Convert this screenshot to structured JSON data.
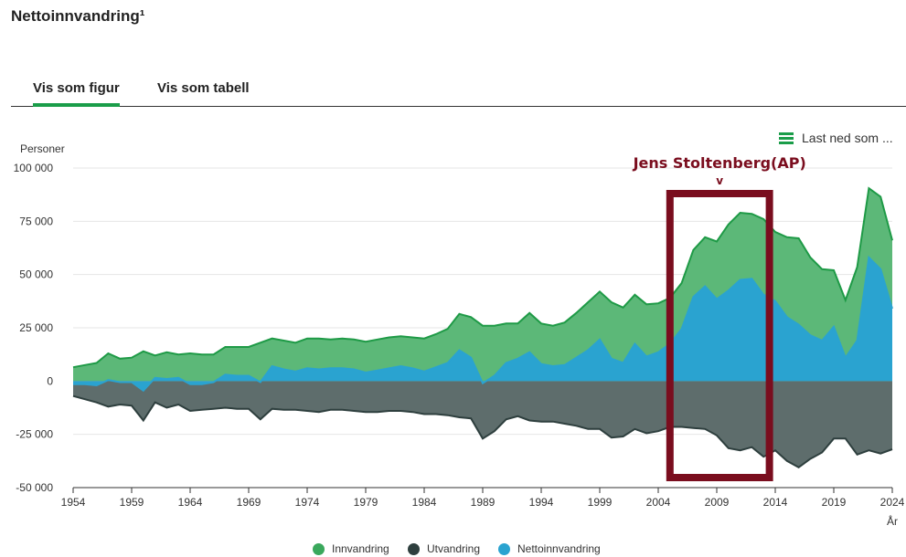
{
  "page": {
    "title": "Nettoinnvandring¹",
    "tabs": [
      {
        "label": "Vis som figur",
        "active": true
      },
      {
        "label": "Vis som tabell",
        "active": false
      }
    ],
    "download_label": "Last ned som ...",
    "download_icon": "hamburger-menu-icon",
    "accent_color": "#1a9d49"
  },
  "annotation": {
    "label": "Jens Stoltenberg(AP)",
    "arrow": "v",
    "color": "#7a0d1e",
    "x_range": [
      2005,
      2013.5
    ]
  },
  "chart_data": {
    "type": "area",
    "ylabel": "Personer",
    "xlabel": "År",
    "ylim": [
      -50000,
      100000
    ],
    "xlim": [
      1954,
      2024
    ],
    "y_ticks": [
      100000,
      75000,
      50000,
      25000,
      0,
      -25000,
      -50000
    ],
    "y_tick_labels": [
      "100 000",
      "75 000",
      "50 000",
      "25 000",
      "0",
      "-25 000",
      "-50 000"
    ],
    "x_ticks": [
      1954,
      1959,
      1964,
      1969,
      1974,
      1979,
      1984,
      1989,
      1994,
      1999,
      2004,
      2009,
      2014,
      2019,
      2024
    ],
    "x_tick_labels": [
      "1954",
      "1959",
      "1964",
      "1969",
      "1974",
      "1979",
      "1984",
      "1989",
      "1994",
      "1999",
      "2004",
      "2009",
      "2014",
      "2019",
      "2024"
    ],
    "grid": true,
    "legend_position": "bottom-center",
    "x": [
      1954,
      1955,
      1956,
      1957,
      1958,
      1959,
      1960,
      1961,
      1962,
      1963,
      1964,
      1965,
      1966,
      1967,
      1968,
      1969,
      1970,
      1971,
      1972,
      1973,
      1974,
      1975,
      1976,
      1977,
      1978,
      1979,
      1980,
      1981,
      1982,
      1983,
      1984,
      1985,
      1986,
      1987,
      1988,
      1989,
      1990,
      1991,
      1992,
      1993,
      1994,
      1995,
      1996,
      1997,
      1998,
      1999,
      2000,
      2001,
      2002,
      2003,
      2004,
      2005,
      2006,
      2007,
      2008,
      2009,
      2010,
      2011,
      2012,
      2013,
      2014,
      2015,
      2016,
      2017,
      2018,
      2019,
      2020,
      2021,
      2022,
      2023,
      2024
    ],
    "series": [
      {
        "name": "Innvandring",
        "color": "#3aa85c",
        "values": [
          6500,
          7500,
          8500,
          13000,
          10500,
          11000,
          14000,
          12000,
          13500,
          12500,
          13000,
          12500,
          12500,
          16000,
          16000,
          16000,
          18000,
          20000,
          19000,
          18000,
          20000,
          20000,
          19500,
          20000,
          19500,
          18500,
          19500,
          20500,
          21000,
          20500,
          20000,
          22000,
          24500,
          31500,
          30000,
          26000,
          26000,
          27000,
          27000,
          32000,
          27000,
          26000,
          27500,
          32000,
          37000,
          42000,
          37000,
          34500,
          40500,
          36000,
          36500,
          39000,
          46000,
          61500,
          67500,
          65500,
          73500,
          79000,
          78500,
          76000,
          70000,
          67500,
          67000,
          58000,
          52500,
          52000,
          38000,
          53500,
          90500,
          86500,
          66000
        ]
      },
      {
        "name": "Utvandring",
        "color": "#2e3f3e",
        "values": [
          -7000,
          -8500,
          -10000,
          -12000,
          -11000,
          -11500,
          -18500,
          -10000,
          -12500,
          -11000,
          -14000,
          -13500,
          -13000,
          -12500,
          -13000,
          -13000,
          -18000,
          -13000,
          -13500,
          -13500,
          -14000,
          -14500,
          -13500,
          -13500,
          -14000,
          -14500,
          -14500,
          -14000,
          -14000,
          -14500,
          -15500,
          -15500,
          -16000,
          -17000,
          -17500,
          -27000,
          -23500,
          -18000,
          -16500,
          -18500,
          -19000,
          -19000,
          -20000,
          -21000,
          -22500,
          -22500,
          -26500,
          -26000,
          -22500,
          -24500,
          -23500,
          -21500,
          -21500,
          -22000,
          -22500,
          -25500,
          -31500,
          -32500,
          -31000,
          -35500,
          -32500,
          -37500,
          -40500,
          -36500,
          -33500,
          -27000,
          -27000,
          -34500,
          -32500,
          -34000,
          -32000
        ]
      },
      {
        "name": "Nettoinnvandring",
        "color": "#2aa3d0",
        "values": [
          -1500,
          -1500,
          -2000,
          500,
          -500,
          -500,
          -4500,
          1500,
          1000,
          1500,
          -1500,
          -1500,
          -500,
          3000,
          2500,
          2500,
          -500,
          7000,
          5500,
          4500,
          6000,
          5500,
          6000,
          6000,
          5500,
          4000,
          5000,
          6000,
          7000,
          6000,
          4500,
          6500,
          8500,
          14500,
          11000,
          -1000,
          2500,
          8500,
          10500,
          13500,
          8000,
          7000,
          7500,
          11000,
          14500,
          19500,
          10500,
          8500,
          17500,
          11500,
          13500,
          17500,
          24500,
          39500,
          44500,
          38500,
          42500,
          47500,
          48000,
          40500,
          37500,
          30000,
          26500,
          21500,
          19000,
          25500,
          11000,
          19000,
          58000,
          52500,
          34000
        ]
      }
    ]
  }
}
